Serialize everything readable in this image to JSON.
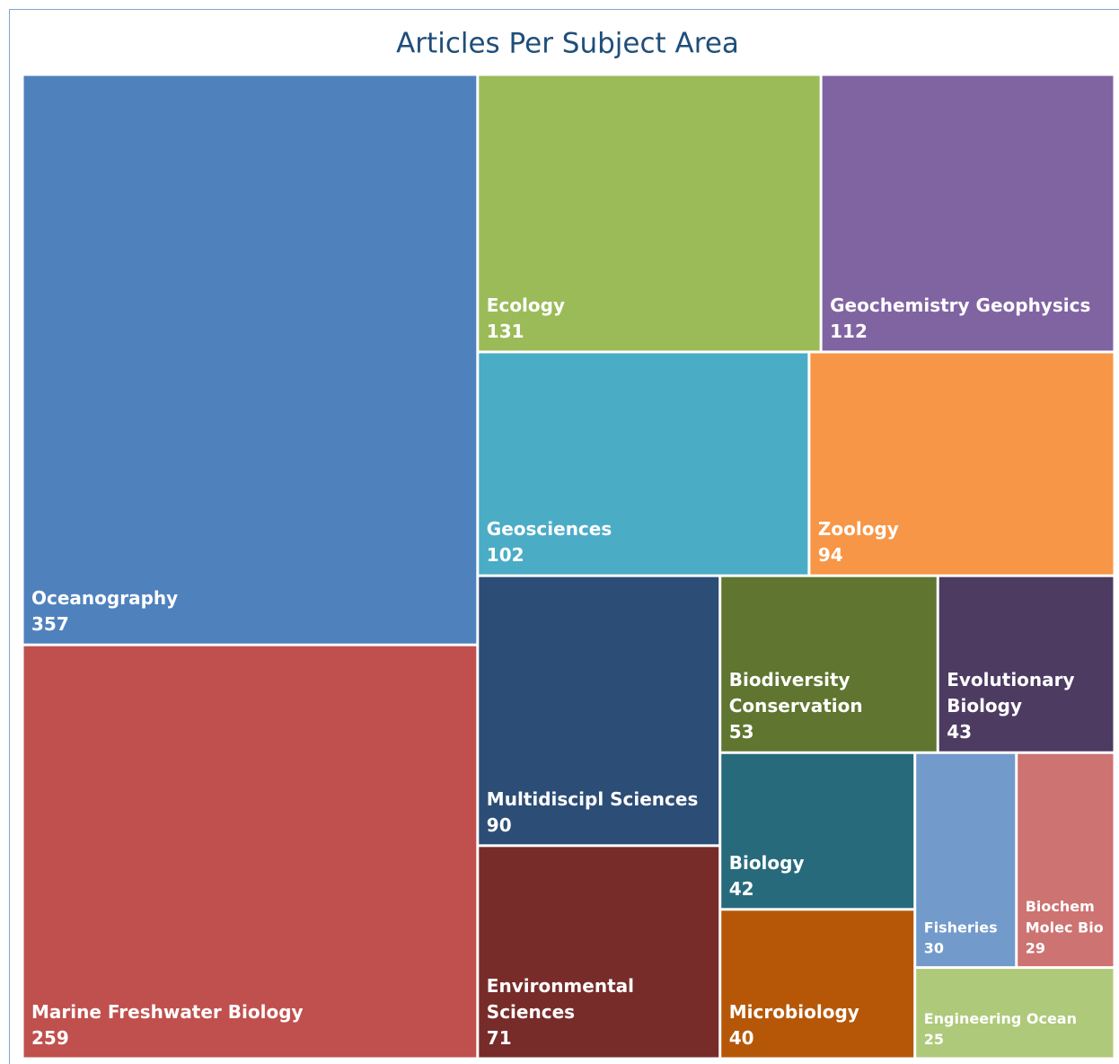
{
  "chart_data": {
    "type": "treemap",
    "title": "Articles Per Subject Area",
    "categories": [
      "Oceanography",
      "Marine Freshwater Biology",
      "Ecology",
      "Geochemistry Geophysics",
      "Geosciences",
      "Zoology",
      "Multidiscipl Sciences",
      "Environmental Sciences",
      "Biodiversity Conservation",
      "Evolutionary Biology",
      "Biology",
      "Microbiology",
      "Fisheries",
      "Biochem Molec Bio",
      "Engineering Ocean"
    ],
    "values": [
      357,
      259,
      131,
      112,
      102,
      94,
      90,
      71,
      53,
      43,
      42,
      40,
      30,
      29,
      25
    ],
    "colors": [
      "#4f81bd",
      "#c0504d",
      "#9bbb59",
      "#8064a2",
      "#4bacc6",
      "#f79646",
      "#2c4d75",
      "#772c2a",
      "#5f7530",
      "#4d3b62",
      "#276a7c",
      "#b65708",
      "#729aca",
      "#cd7371",
      "#afc97a"
    ]
  }
}
